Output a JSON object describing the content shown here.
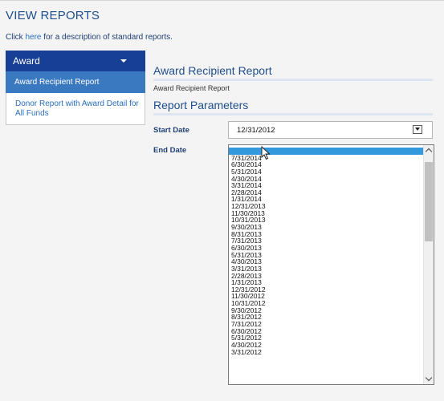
{
  "page": {
    "title": "VIEW REPORTS",
    "help_prefix": "Click ",
    "help_link": "here",
    "help_suffix": " for a description of standard reports."
  },
  "sidebar": {
    "category": "Award",
    "items": [
      {
        "label": "Award Recipient Report",
        "active": true
      },
      {
        "label": "Donor Report with Award Detail for All Funds",
        "active": false
      }
    ]
  },
  "main": {
    "report_heading": "Award Recipient Report",
    "report_name": "Award Recipient Report",
    "params_heading": "Report Parameters",
    "start_date_label": "Start Date",
    "end_date_label": "End Date",
    "start_date_value": "12/31/2012"
  },
  "dropdown": {
    "options": [
      "",
      "7/31/2014",
      "6/30/2014",
      "5/31/2014",
      "4/30/2014",
      "3/31/2014",
      "2/28/2014",
      "1/31/2014",
      "12/31/2013",
      "11/30/2013",
      "10/31/2013",
      "9/30/2013",
      "8/31/2013",
      "7/31/2013",
      "6/30/2013",
      "5/31/2013",
      "4/30/2013",
      "3/31/2013",
      "2/28/2013",
      "1/31/2013",
      "12/31/2012",
      "11/30/2012",
      "10/31/2012",
      "9/30/2012",
      "8/31/2012",
      "7/31/2012",
      "6/30/2012",
      "5/31/2012",
      "4/30/2012",
      "3/31/2012"
    ],
    "highlighted_index": 0
  },
  "colors": {
    "accent": "#173f95",
    "active_item": "#3a79bf",
    "highlight": "#3399dd",
    "heading": "#1f4e8c"
  }
}
